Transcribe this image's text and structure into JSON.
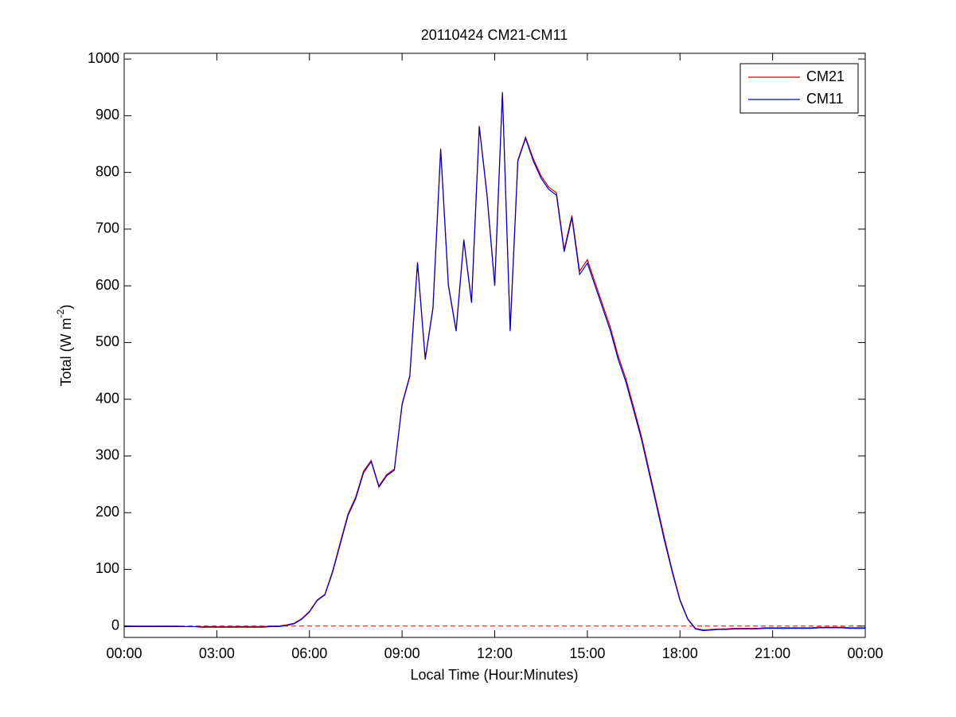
{
  "chart_data": {
    "type": "line",
    "title": "20110424 CM21-CM11",
    "x_label": "Local Time (Hour:Minutes)",
    "y_label": [
      "Total (W m",
      "-2",
      ")"
    ],
    "xlim": [
      0,
      24
    ],
    "xticks": [
      {
        "value": 0,
        "label": "00:00"
      },
      {
        "value": 3,
        "label": "03:00"
      },
      {
        "value": 6,
        "label": "06:00"
      },
      {
        "value": 9,
        "label": "09:00"
      },
      {
        "value": 12,
        "label": "12:00"
      },
      {
        "value": 15,
        "label": "15:00"
      },
      {
        "value": 18,
        "label": "18:00"
      },
      {
        "value": 21,
        "label": "21:00"
      },
      {
        "value": 24,
        "label": "00:00"
      }
    ],
    "ylim": [
      -20,
      1010
    ],
    "yticks": [
      0,
      100,
      200,
      300,
      400,
      500,
      600,
      700,
      800,
      900,
      1000
    ],
    "legend": "upper right",
    "reference_line": {
      "value": 0,
      "color": "#cc0000",
      "style": "dashed"
    },
    "x": [
      0,
      0.25,
      0.5,
      0.75,
      1,
      1.25,
      1.5,
      1.75,
      2,
      2.25,
      2.5,
      2.75,
      3,
      3.25,
      3.5,
      3.75,
      4,
      4.25,
      4.5,
      4.75,
      5,
      5.25,
      5.5,
      5.75,
      6,
      6.25,
      6.5,
      6.75,
      7,
      7.25,
      7.5,
      7.75,
      8,
      8.25,
      8.5,
      8.75,
      9,
      9.25,
      9.5,
      9.75,
      10,
      10.25,
      10.5,
      10.75,
      11,
      11.25,
      11.5,
      11.75,
      12,
      12.25,
      12.5,
      12.75,
      13,
      13.25,
      13.5,
      13.75,
      14,
      14.25,
      14.5,
      14.75,
      15,
      15.25,
      15.5,
      15.75,
      16,
      16.25,
      16.5,
      16.75,
      17,
      17.25,
      17.5,
      17.75,
      18,
      18.25,
      18.5,
      18.75,
      19,
      19.25,
      19.5,
      19.75,
      20,
      20.25,
      20.5,
      20.75,
      21,
      21.25,
      21.5,
      21.75,
      22,
      22.25,
      22.5,
      22.75,
      23,
      23.25,
      23.5,
      23.75,
      24
    ],
    "series": [
      {
        "name": "CM21",
        "color": "#cc0000",
        "values": [
          0,
          0,
          0,
          0,
          0,
          0,
          0,
          0,
          -1,
          -1,
          -1,
          -1,
          -1,
          -1,
          -1,
          -1,
          -1,
          -1,
          -1,
          0,
          0,
          2,
          5,
          13,
          26,
          46,
          56,
          97,
          148,
          198,
          228,
          273,
          292,
          247,
          267,
          277,
          392,
          442,
          642,
          472,
          562,
          842,
          602,
          522,
          682,
          572,
          882,
          762,
          602,
          942,
          522,
          822,
          862,
          824,
          794,
          774,
          764,
          664,
          724,
          626,
          646,
          606,
          566,
          526,
          476,
          436,
          386,
          335,
          275,
          215,
          155,
          98,
          47,
          13,
          -4,
          -7,
          -6,
          -5,
          -5,
          -4,
          -4,
          -4,
          -4,
          -3,
          -3,
          -3,
          -3,
          -3,
          -3,
          -3,
          -2,
          -2,
          -2,
          -2,
          -3,
          -3,
          -3
        ]
      },
      {
        "name": "CM11",
        "color": "#0000cc",
        "values": [
          -1,
          -1,
          -1,
          -1,
          -1,
          -1,
          -1,
          -1,
          -1,
          -1,
          -2,
          -2,
          -2,
          -2,
          -2,
          -2,
          -2,
          -2,
          -2,
          -1,
          -1,
          1,
          4,
          12,
          25,
          45,
          55,
          95,
          145,
          195,
          225,
          270,
          290,
          245,
          265,
          275,
          390,
          440,
          640,
          470,
          560,
          840,
          600,
          520,
          680,
          570,
          880,
          760,
          600,
          940,
          520,
          820,
          860,
          820,
          790,
          770,
          760,
          660,
          720,
          620,
          640,
          600,
          560,
          520,
          470,
          430,
          380,
          330,
          270,
          210,
          150,
          95,
          45,
          12,
          -5,
          -8,
          -7,
          -6,
          -6,
          -5,
          -5,
          -5,
          -5,
          -4,
          -4,
          -4,
          -4,
          -4,
          -4,
          -4,
          -3,
          -3,
          -3,
          -3,
          -4,
          -4,
          -4
        ]
      }
    ]
  }
}
